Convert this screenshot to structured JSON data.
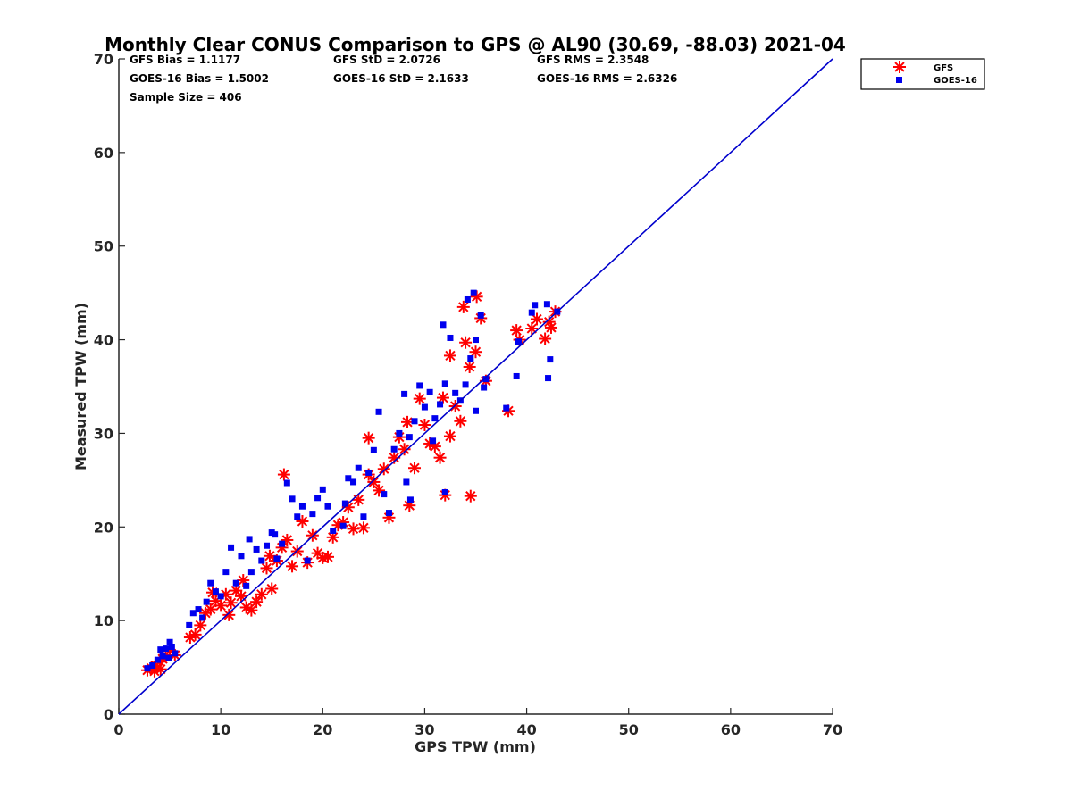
{
  "chart_data": {
    "type": "scatter",
    "title": "Monthly Clear CONUS Comparison to GPS @ AL90 (30.69, -88.03) 2021-04",
    "xlabel": "GPS TPW (mm)",
    "ylabel": "Measured TPW (mm)",
    "xlim": [
      0,
      70
    ],
    "ylim": [
      0,
      70
    ],
    "xticks": [
      "0",
      "10",
      "20",
      "30",
      "40",
      "50",
      "60",
      "70"
    ],
    "yticks": [
      "0",
      "10",
      "20",
      "30",
      "40",
      "50",
      "60",
      "70"
    ],
    "grid": false,
    "legend_position": "top-right",
    "stats": {
      "gfs_bias": "GFS Bias = 1.1177",
      "gfs_std": "GFS StD = 2.0726",
      "gfs_rms": "GFS RMS = 2.3548",
      "goes_bias": "GOES-16 Bias = 1.5002",
      "goes_std": "GOES-16 StD = 2.1633",
      "goes_rms": "GOES-16 RMS = 2.6326",
      "sample_size": "Sample Size = 406"
    },
    "reference_line": {
      "name": "1:1 line",
      "x": [
        0,
        70
      ],
      "y": [
        0,
        70
      ],
      "color": "#0000cc"
    },
    "series": [
      {
        "name": "GFS",
        "marker": "asterisk",
        "color": "#ff0000",
        "points": [
          [
            2.8,
            4.7
          ],
          [
            3.2,
            4.9
          ],
          [
            3.6,
            5.2
          ],
          [
            4.0,
            5.6
          ],
          [
            4.3,
            5.9
          ],
          [
            4.6,
            6.3
          ],
          [
            5.0,
            6.8
          ],
          [
            5.5,
            6.3
          ],
          [
            4.1,
            4.8
          ],
          [
            3.5,
            4.6
          ],
          [
            7.0,
            8.2
          ],
          [
            7.5,
            8.5
          ],
          [
            8.0,
            9.5
          ],
          [
            8.5,
            10.8
          ],
          [
            9.0,
            11.2
          ],
          [
            9.5,
            12.1
          ],
          [
            10.0,
            11.6
          ],
          [
            10.5,
            12.8
          ],
          [
            11.0,
            11.9
          ],
          [
            11.5,
            13.2
          ],
          [
            12.0,
            12.6
          ],
          [
            12.5,
            11.4
          ],
          [
            13.0,
            11.1
          ],
          [
            13.5,
            12.0
          ],
          [
            14.0,
            12.8
          ],
          [
            14.5,
            15.6
          ],
          [
            15.0,
            13.4
          ],
          [
            15.5,
            16.4
          ],
          [
            16.0,
            17.8
          ],
          [
            16.5,
            18.6
          ],
          [
            17.0,
            15.8
          ],
          [
            17.5,
            17.4
          ],
          [
            18.0,
            20.6
          ],
          [
            18.5,
            16.2
          ],
          [
            19.0,
            19.1
          ],
          [
            19.5,
            17.2
          ],
          [
            20.0,
            16.7
          ],
          [
            20.5,
            16.8
          ],
          [
            21.0,
            18.9
          ],
          [
            21.5,
            20.2
          ],
          [
            22.0,
            20.5
          ],
          [
            22.5,
            22.1
          ],
          [
            23.0,
            19.8
          ],
          [
            23.5,
            22.9
          ],
          [
            24.0,
            19.9
          ],
          [
            24.5,
            25.6
          ],
          [
            25.0,
            24.8
          ],
          [
            25.5,
            23.9
          ],
          [
            26.0,
            26.2
          ],
          [
            26.5,
            21.0
          ],
          [
            27.0,
            27.4
          ],
          [
            27.5,
            29.6
          ],
          [
            28.0,
            28.3
          ],
          [
            28.5,
            22.3
          ],
          [
            29.0,
            26.3
          ],
          [
            29.5,
            33.7
          ],
          [
            30.0,
            30.9
          ],
          [
            30.5,
            28.9
          ],
          [
            31.0,
            28.6
          ],
          [
            31.5,
            27.4
          ],
          [
            32.0,
            23.4
          ],
          [
            32.5,
            29.7
          ],
          [
            33.0,
            32.9
          ],
          [
            33.5,
            31.3
          ],
          [
            34.0,
            39.7
          ],
          [
            34.5,
            23.3
          ],
          [
            35.0,
            38.7
          ],
          [
            35.5,
            42.3
          ],
          [
            36.0,
            35.6
          ],
          [
            33.8,
            43.5
          ],
          [
            34.4,
            37.1
          ],
          [
            35.1,
            44.6
          ],
          [
            38.2,
            32.4
          ],
          [
            39.0,
            41.0
          ],
          [
            39.3,
            40.0
          ],
          [
            40.5,
            41.2
          ],
          [
            41.0,
            42.2
          ],
          [
            41.8,
            40.1
          ],
          [
            42.2,
            41.9
          ],
          [
            42.4,
            41.3
          ],
          [
            42.8,
            43.0
          ],
          [
            16.2,
            25.6
          ],
          [
            24.5,
            29.5
          ],
          [
            28.3,
            31.2
          ],
          [
            31.8,
            33.8
          ],
          [
            12.2,
            14.3
          ],
          [
            9.2,
            13.0
          ],
          [
            14.8,
            16.9
          ],
          [
            32.5,
            38.3
          ],
          [
            10.8,
            10.6
          ]
        ]
      },
      {
        "name": "GOES-16",
        "marker": "square",
        "color": "#0000ee",
        "points": [
          [
            2.8,
            4.9
          ],
          [
            3.3,
            5.2
          ],
          [
            3.8,
            5.8
          ],
          [
            4.3,
            6.2
          ],
          [
            4.6,
            7.0
          ],
          [
            5.0,
            7.7
          ],
          [
            5.5,
            6.5
          ],
          [
            4.1,
            6.9
          ],
          [
            4.9,
            6.0
          ],
          [
            5.2,
            7.2
          ],
          [
            6.9,
            9.5
          ],
          [
            7.3,
            10.8
          ],
          [
            7.8,
            11.2
          ],
          [
            8.2,
            10.3
          ],
          [
            8.6,
            12.0
          ],
          [
            9.0,
            14.0
          ],
          [
            9.5,
            13.1
          ],
          [
            10.0,
            12.6
          ],
          [
            10.5,
            15.2
          ],
          [
            11.0,
            17.8
          ],
          [
            11.5,
            14.0
          ],
          [
            12.0,
            16.9
          ],
          [
            12.5,
            13.7
          ],
          [
            13.0,
            15.2
          ],
          [
            13.5,
            17.6
          ],
          [
            14.0,
            16.4
          ],
          [
            14.5,
            18.0
          ],
          [
            15.0,
            19.4
          ],
          [
            15.5,
            16.6
          ],
          [
            16.0,
            18.2
          ],
          [
            16.5,
            24.7
          ],
          [
            17.0,
            23.0
          ],
          [
            17.5,
            21.1
          ],
          [
            18.0,
            22.2
          ],
          [
            18.5,
            16.4
          ],
          [
            19.0,
            21.4
          ],
          [
            19.5,
            23.1
          ],
          [
            20.0,
            24.0
          ],
          [
            20.5,
            22.2
          ],
          [
            21.0,
            19.6
          ],
          [
            22.0,
            20.1
          ],
          [
            22.5,
            25.2
          ],
          [
            23.0,
            24.8
          ],
          [
            23.5,
            26.3
          ],
          [
            24.0,
            21.1
          ],
          [
            24.5,
            25.8
          ],
          [
            25.0,
            28.2
          ],
          [
            25.5,
            32.3
          ],
          [
            26.0,
            23.5
          ],
          [
            26.5,
            21.5
          ],
          [
            27.0,
            28.3
          ],
          [
            27.5,
            30.0
          ],
          [
            28.0,
            34.2
          ],
          [
            28.5,
            29.6
          ],
          [
            29.0,
            31.3
          ],
          [
            29.5,
            35.1
          ],
          [
            30.0,
            32.8
          ],
          [
            30.5,
            34.4
          ],
          [
            31.0,
            31.6
          ],
          [
            31.5,
            33.1
          ],
          [
            31.8,
            41.6
          ],
          [
            32.0,
            35.3
          ],
          [
            32.5,
            40.2
          ],
          [
            33.0,
            34.3
          ],
          [
            33.5,
            33.5
          ],
          [
            34.0,
            35.2
          ],
          [
            34.5,
            38.0
          ],
          [
            34.8,
            45.0
          ],
          [
            35.0,
            32.4
          ],
          [
            35.5,
            42.6
          ],
          [
            35.8,
            34.9
          ],
          [
            36.0,
            35.8
          ],
          [
            38.0,
            32.7
          ],
          [
            39.0,
            36.1
          ],
          [
            39.2,
            39.8
          ],
          [
            40.5,
            42.9
          ],
          [
            40.8,
            43.7
          ],
          [
            42.0,
            43.8
          ],
          [
            42.1,
            35.9
          ],
          [
            42.3,
            37.9
          ],
          [
            43.0,
            43.0
          ],
          [
            34.2,
            44.3
          ],
          [
            35.0,
            40.0
          ],
          [
            28.6,
            22.9
          ],
          [
            32.0,
            23.7
          ],
          [
            28.2,
            24.8
          ],
          [
            30.8,
            29.2
          ],
          [
            22.2,
            22.5
          ],
          [
            15.3,
            19.2
          ],
          [
            12.8,
            18.7
          ]
        ]
      }
    ]
  }
}
